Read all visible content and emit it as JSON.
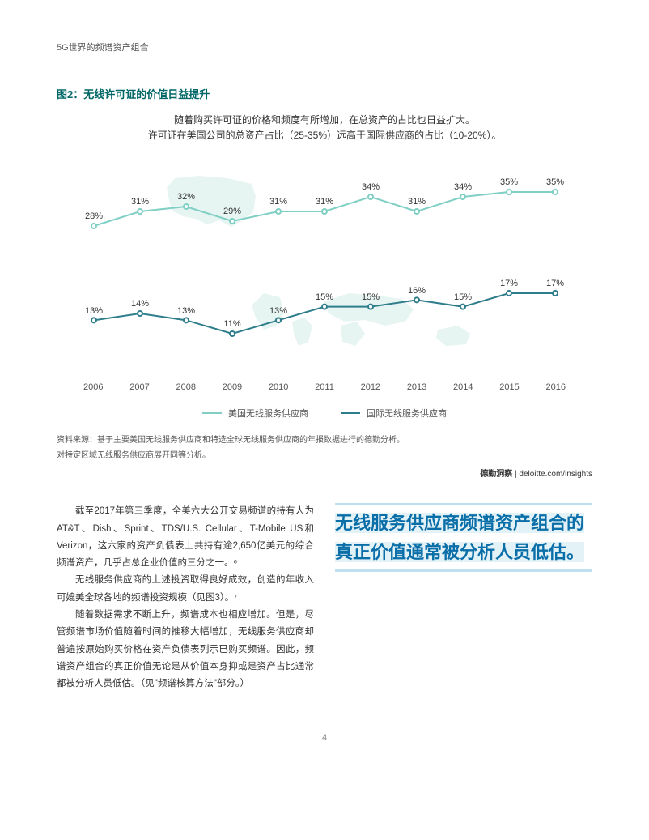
{
  "header": {
    "title": "5G世界的频谱资产组合"
  },
  "figure": {
    "label": "图2：无线许可证的价值日益提升",
    "desc_line1": "随着购买许可证的价格和频度有所增加，在总资产的占比也日益扩大。",
    "desc_line2": "许可证在美国公司的总资产占比（25-35%）远高于国际供应商的占比（10-20%）。"
  },
  "chart": {
    "type": "line",
    "years": [
      "2006",
      "2007",
      "2008",
      "2009",
      "2010",
      "2011",
      "2012",
      "2013",
      "2014",
      "2015",
      "2016"
    ],
    "series_usa": {
      "label": "美国无线服务供应商",
      "color": "#7fcfc4",
      "values": [
        28,
        31,
        32,
        29,
        31,
        31,
        34,
        31,
        34,
        35,
        35
      ]
    },
    "series_intl": {
      "label": "国际无线服务供应商",
      "color": "#2e7d8a",
      "values": [
        13,
        14,
        13,
        11,
        13,
        15,
        15,
        16,
        15,
        17,
        17
      ]
    },
    "axis_color": "#cccccc",
    "label_fontsize": 11,
    "map_fill": "#9fd4cd",
    "tick_color": "#555555"
  },
  "legend": {
    "usa": "美国无线服务供应商",
    "intl": "国际无线服务供应商"
  },
  "source": {
    "line1": "资料来源：基于主要美国无线服务供应商和特选全球无线服务供应商的年报数据进行的德勤分析。",
    "line2": "对特定区域无线服务供应商展开同等分析。",
    "credit_bold": "德勤洞察",
    "credit_sep": " | ",
    "credit_url": "deloitte.com/insights"
  },
  "body": {
    "p1": "截至2017年第三季度，全美六大公开交易频谱的持有人为AT&T、Dish、Sprint、TDS/U.S. Cellular、T-Mobile US和Verizon，这六家的资产负债表上共持有逾2,650亿美元的综合频谱资产，几乎占总企业价值的三分之一。⁶",
    "p2": "无线服务供应商的上述投资取得良好成效，创造的年收入可媲美全球各地的频谱投资规模（见图3）。⁷",
    "p3": "随着数据需求不断上升，频谱成本也相应增加。但是，尽管频谱市场价值随着时间的推移大幅增加，无线服务供应商却普遍按原始购买价格在资产负债表列示已购买频谱。因此，频谱资产组合的真正价值无论是从价值本身抑或是资产占比通常都被分析人员低估。（见\"频谱核算方法\"部分。）"
  },
  "pullquote": "无线服务供应商频谱资产组合的真正价值通常被分析人员低估。",
  "page_number": "4"
}
